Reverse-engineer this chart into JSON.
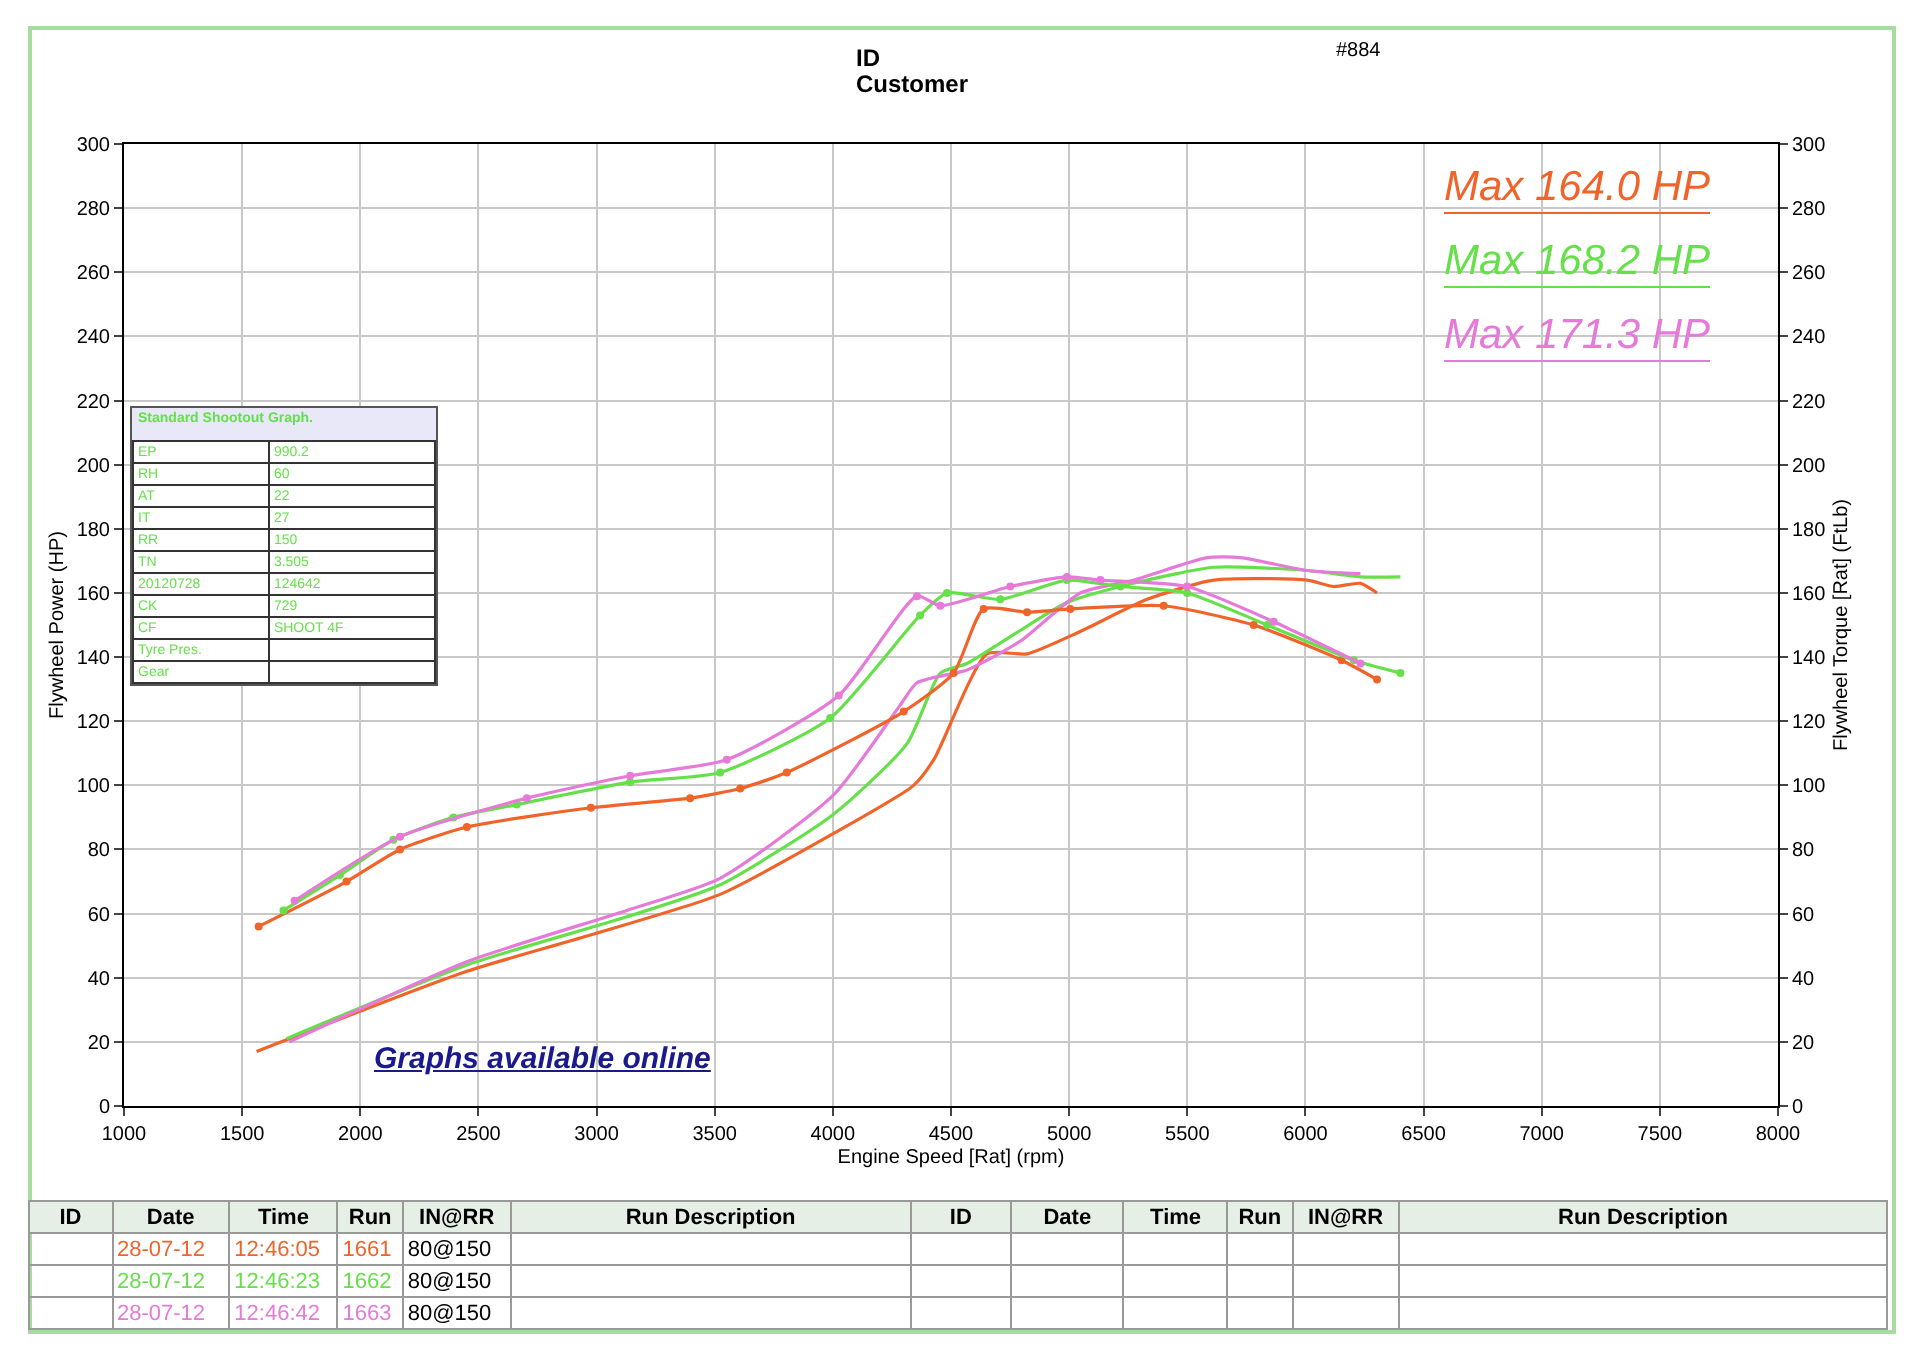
{
  "chart_data": {
    "type": "line",
    "xlabel": "Engine Speed [Rat] (rpm)",
    "ylabel": "Flywheel Power (HP)",
    "y2label": "Flywheel Torque [Rat] (FtLb)",
    "xlim": [
      1000,
      8000
    ],
    "xticks": [
      1000,
      1500,
      2000,
      2500,
      3000,
      3500,
      4000,
      4500,
      5000,
      5500,
      6000,
      6500,
      7000,
      7500,
      8000
    ],
    "ylim": [
      0,
      300
    ],
    "yticks": [
      0,
      20,
      40,
      60,
      80,
      100,
      120,
      140,
      160,
      180,
      200,
      220,
      240,
      260,
      280,
      300
    ],
    "y2lim": [
      0,
      300
    ],
    "y2ticks": [
      0,
      20,
      40,
      60,
      80,
      100,
      120,
      140,
      160,
      180,
      200,
      220,
      240,
      260,
      280,
      300
    ],
    "grid": true,
    "line_style": "solid",
    "series": [
      {
        "color": "#f0642a",
        "marker": "none",
        "x": [
          1561,
          2451,
          2959,
          3523,
          4003,
          4342,
          4427,
          4652,
          4822,
          5047,
          5330,
          5612,
          6007,
          6120,
          6233,
          6303
        ],
        "values": [
          17,
          42,
          53,
          66,
          85,
          100,
          108,
          141,
          141,
          148,
          158,
          164,
          164,
          162,
          163,
          160
        ]
      },
      {
        "color": "#66e04a",
        "marker": "none",
        "x": [
          1688,
          2451,
          3128,
          3523,
          4003,
          4314,
          4455,
          4568,
          4765,
          4991,
          5273,
          5612,
          6007,
          6233,
          6402
        ],
        "values": [
          21,
          44,
          59,
          69,
          91,
          113,
          135,
          138,
          147,
          157,
          163,
          168,
          167,
          165,
          165
        ]
      },
      {
        "color": "#e57ad8",
        "marker": "none",
        "x": [
          1700,
          2451,
          3128,
          3523,
          4003,
          4285,
          4356,
          4568,
          4794,
          5047,
          5273,
          5584,
          5725,
          6007,
          6233
        ],
        "values": [
          20,
          45,
          61,
          71,
          97,
          125,
          132,
          136,
          145,
          160,
          164,
          171,
          171,
          167,
          166
        ]
      },
      {
        "color": "#f0642a",
        "marker": "circle",
        "axis": "y2",
        "x": [
          1570,
          1942,
          2168,
          2451,
          2976,
          3396,
          3608,
          3805,
          4300,
          4511,
          4638,
          4822,
          5005,
          5400,
          5781,
          6153,
          6303
        ],
        "values": [
          56,
          70,
          80,
          87,
          93,
          96,
          99,
          104,
          123,
          135,
          155,
          154,
          155,
          156,
          150,
          139,
          133
        ]
      },
      {
        "color": "#66e04a",
        "marker": "circle",
        "axis": "y2",
        "x": [
          1675,
          1914,
          2140,
          2394,
          2662,
          3142,
          3523,
          3989,
          4369,
          4483,
          4709,
          4991,
          5217,
          5499,
          5838,
          6205,
          6402
        ],
        "values": [
          61,
          72,
          83,
          90,
          94,
          101,
          104,
          121,
          153,
          160,
          158,
          164,
          162,
          160,
          150,
          139,
          135
        ]
      },
      {
        "color": "#e57ad8",
        "marker": "circle",
        "axis": "y2",
        "x": [
          1722,
          2168,
          2705,
          3142,
          3551,
          4025,
          4356,
          4455,
          4751,
          4991,
          5132,
          5499,
          5866,
          6233
        ],
        "values": [
          64,
          84,
          96,
          103,
          108,
          128,
          159,
          156,
          162,
          165,
          164,
          162,
          151,
          138
        ]
      }
    ],
    "annotations": [
      "ID",
      "Customer",
      "#884",
      "Max 164.0 HP",
      "Max 168.2 HP",
      "Max 171.3 HP",
      "Standard Shootout Graph.",
      "EP",
      "990.2",
      "RH",
      "60",
      "AT",
      "22",
      "IT",
      "27",
      "RR",
      "150",
      "TN",
      "3.505",
      "20120728",
      "124642",
      "CK",
      "729",
      "CF",
      "SHOOT 4F",
      "Tyre Pres.",
      "Gear",
      "Graphs available online",
      "ID",
      "Date",
      "Time",
      "Run",
      "IN@RR",
      "Run Description",
      "ID",
      "Date",
      "Time",
      "Run",
      "IN@RR",
      "Run Description",
      "28-07-12",
      "12:46:05",
      "1661",
      "80@150",
      "28-07-12",
      "12:46:23",
      "1662",
      "80@150",
      "28-07-12",
      "12:46:42",
      "1663",
      "80@150"
    ]
  }
}
